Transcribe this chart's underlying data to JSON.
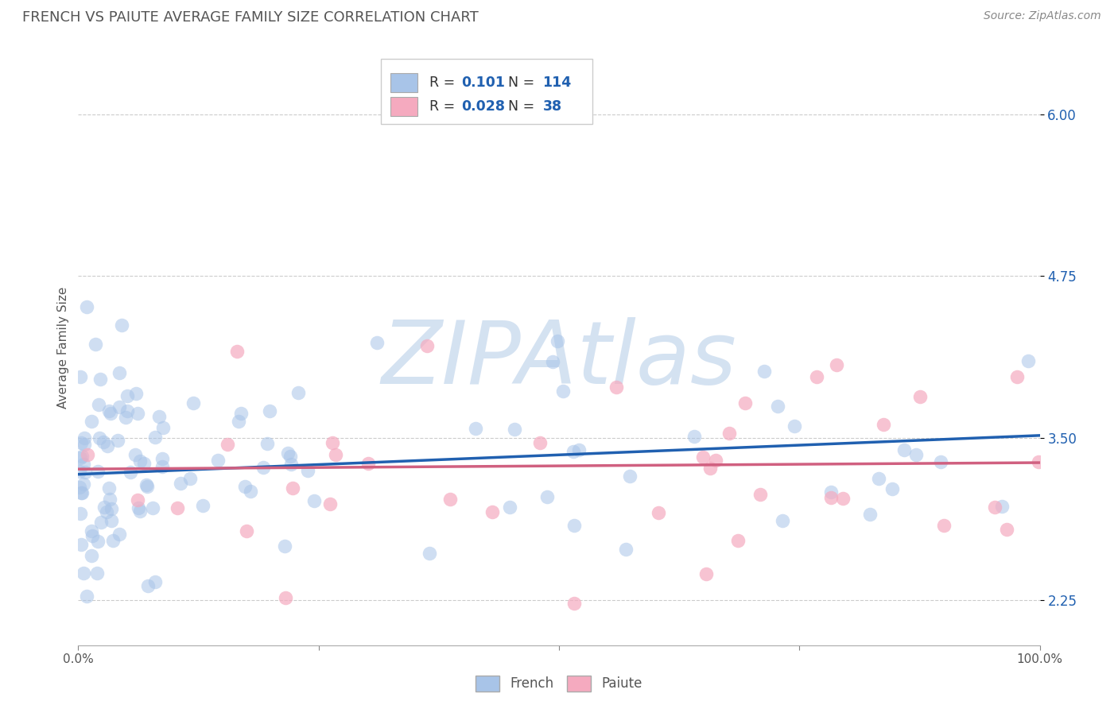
{
  "title": "FRENCH VS PAIUTE AVERAGE FAMILY SIZE CORRELATION CHART",
  "source_text": "Source: ZipAtlas.com",
  "ylabel": "Average Family Size",
  "xlabel": "",
  "xlim": [
    0.0,
    1.0
  ],
  "ylim": [
    1.9,
    6.5
  ],
  "yticks": [
    2.25,
    3.5,
    4.75,
    6.0
  ],
  "xticks": [
    0.0,
    0.25,
    0.5,
    0.75,
    1.0
  ],
  "xticklabels": [
    "0.0%",
    "",
    "",
    "",
    "100.0%"
  ],
  "french_color": "#a8c4e8",
  "paiute_color": "#f5aabf",
  "french_line_color": "#2060b0",
  "paiute_line_color": "#d06080",
  "french_R": 0.101,
  "french_N": 114,
  "paiute_R": 0.028,
  "paiute_N": 38,
  "french_intercept": 3.22,
  "french_slope": 0.3,
  "paiute_intercept": 3.26,
  "paiute_slope": 0.05,
  "watermark": "ZIPAtlas",
  "watermark_color": "#d0dff0",
  "background_color": "#ffffff",
  "grid_color": "#cccccc",
  "title_color": "#555555",
  "legend_text_color": "#333333",
  "legend_value_color": "#2060b0",
  "seed": 17
}
